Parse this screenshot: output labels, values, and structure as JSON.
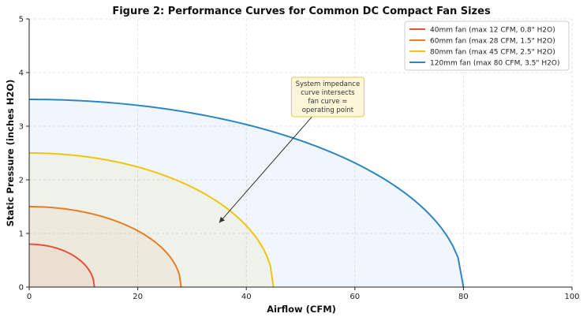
{
  "chart_data": {
    "type": "line",
    "title": "Figure 2: Performance Curves for Common DC Compact Fan Sizes",
    "xlabel": "Airflow (CFM)",
    "ylabel": "Static Pressure (inches H2O)",
    "xlim": [
      0,
      100
    ],
    "ylim": [
      0,
      5
    ],
    "xticks": [
      0,
      20,
      40,
      60,
      80,
      100
    ],
    "yticks": [
      0,
      1,
      2,
      3,
      4,
      5
    ],
    "grid": true,
    "legend_position": "top-right",
    "series": [
      {
        "name": "40mm fan (max 12 CFM, 0.8\" H2O)",
        "max_airflow": 12,
        "max_pressure": 0.8,
        "color": "#e8503a"
      },
      {
        "name": "60mm fan (max 28 CFM, 1.5\" H2O)",
        "max_airflow": 28,
        "max_pressure": 1.5,
        "color": "#e67e22"
      },
      {
        "name": "80mm fan (max 45 CFM, 2.5\" H2O)",
        "max_airflow": 45,
        "max_pressure": 2.5,
        "color": "#f1c40f"
      },
      {
        "name": "120mm fan (max 80 CFM, 3.5\" H2O)",
        "max_airflow": 80,
        "max_pressure": 3.5,
        "color": "#2e86c1"
      }
    ],
    "annotation": {
      "lines": [
        "System impedance",
        "curve intersects",
        "fan curve =",
        "operating point"
      ],
      "text_at": [
        55,
        3.75
      ],
      "arrow_to": [
        35,
        1.2
      ]
    }
  }
}
